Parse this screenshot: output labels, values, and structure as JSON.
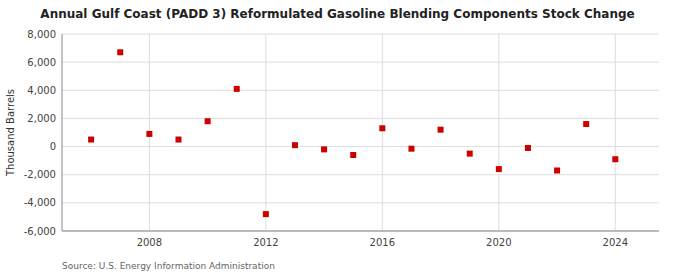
{
  "chart_data": {
    "type": "scatter",
    "title": "Annual Gulf Coast (PADD 3) Reformulated Gasoline Blending Components Stock Change",
    "ylabel": "Thousand Barrels",
    "source": "Source: U.S. Energy Information Administration",
    "x": [
      2006,
      2007,
      2008,
      2009,
      2010,
      2011,
      2012,
      2013,
      2014,
      2015,
      2016,
      2017,
      2018,
      2019,
      2020,
      2021,
      2022,
      2023,
      2024
    ],
    "values": [
      500,
      6700,
      900,
      500,
      1800,
      4100,
      -4800,
      100,
      -200,
      -600,
      1300,
      -150,
      1200,
      -500,
      -1600,
      -100,
      -1700,
      1600,
      -900
    ],
    "color": "#cc0000",
    "marker": "square",
    "xlim": [
      2005,
      2025.5
    ],
    "xticks": [
      2008,
      2012,
      2016,
      2020,
      2024
    ],
    "ylim": [
      -6000,
      8000
    ],
    "yticks": [
      {
        "value": -6000,
        "label": "-6,000"
      },
      {
        "value": -4000,
        "label": "-4,000"
      },
      {
        "value": -2000,
        "label": "-2,000"
      },
      0,
      {
        "value": 2000,
        "label": "2,000"
      },
      {
        "value": 4000,
        "label": "4,000"
      },
      {
        "value": 6000,
        "label": "6,000"
      },
      {
        "value": 8000,
        "label": "8,000"
      }
    ],
    "grid": true
  }
}
